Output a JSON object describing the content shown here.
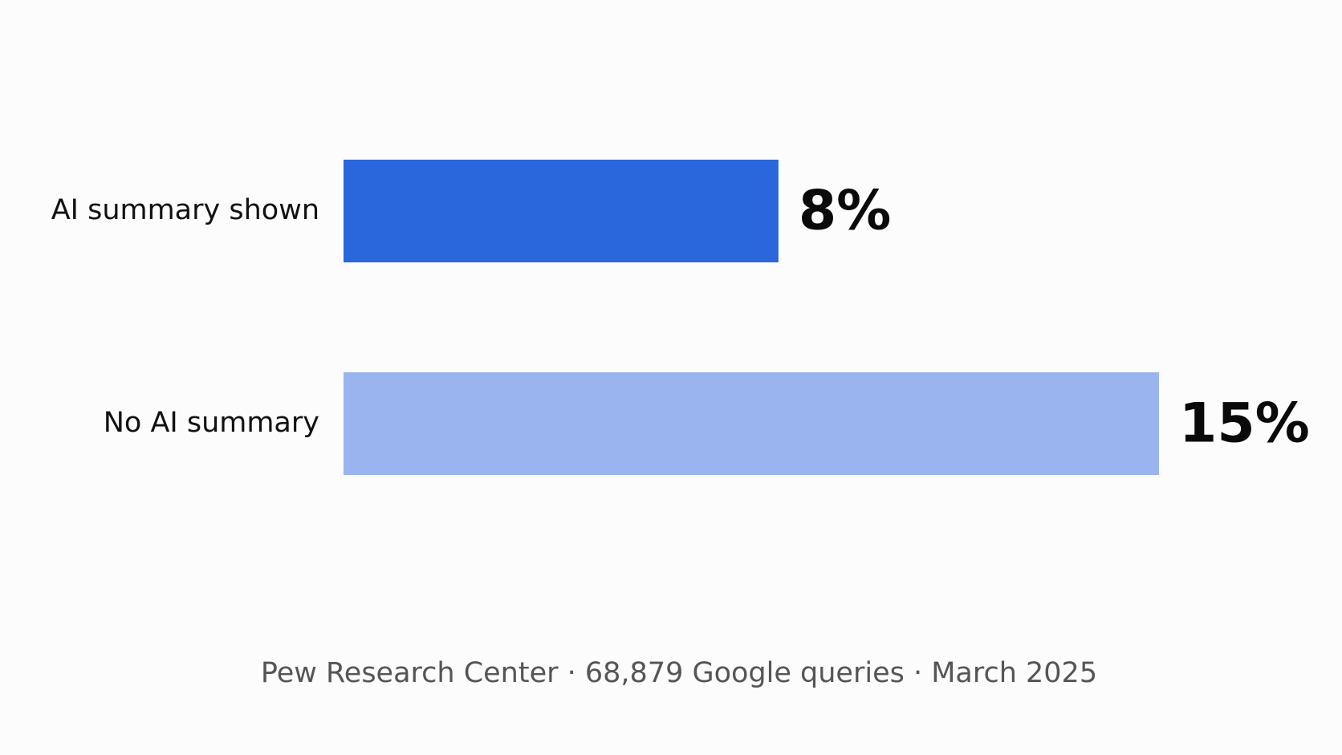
{
  "chart_data": {
    "type": "hbar",
    "categories": [
      "AI summary shown",
      "No AI summary"
    ],
    "values": [
      8,
      15
    ],
    "value_labels": [
      "8%",
      "15%"
    ],
    "colors": [
      "#2a66dc",
      "#9ab4ef"
    ],
    "footnote": "Pew Research Center · 68,879 Google queries · March 2025"
  }
}
